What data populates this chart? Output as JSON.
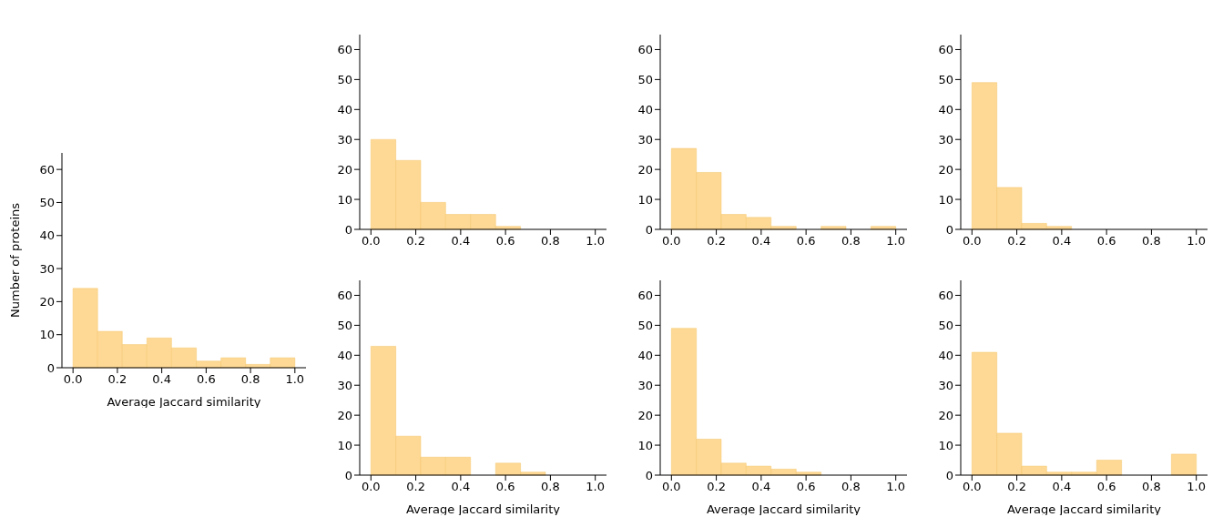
{
  "chart_data": [
    {
      "type": "histogram",
      "ylabel": "Number of proteins",
      "xlabel": "Average Jaccard similarity",
      "color": "#fdd995",
      "bins": [
        0,
        0.111,
        0.222,
        0.333,
        0.444,
        0.556,
        0.667,
        0.778,
        0.889,
        1
      ],
      "values": [
        24,
        11,
        7,
        9,
        6,
        2,
        3,
        1,
        3
      ],
      "xlim": [
        -0.05,
        1.05
      ],
      "xticks": [
        {
          "value": 0,
          "label": "0.0"
        },
        {
          "value": 0.2,
          "label": "0.2"
        },
        {
          "value": 0.4,
          "label": "0.4"
        },
        {
          "value": 0.6,
          "label": "0.6"
        },
        {
          "value": 0.8,
          "label": "0.8"
        },
        {
          "value": 1,
          "label": "1.0"
        }
      ],
      "ylim": [
        0,
        65
      ],
      "yticks": [
        0,
        10,
        20,
        30,
        40,
        50,
        60
      ]
    },
    {
      "type": "histogram",
      "color": "#fdd995",
      "bins": [
        0,
        0.111,
        0.222,
        0.333,
        0.444,
        0.556,
        0.667,
        0.778,
        0.889,
        1
      ],
      "values": [
        30,
        23,
        9,
        5,
        5,
        1,
        0,
        0,
        0
      ],
      "xlim": [
        -0.05,
        1.05
      ],
      "xticks": [
        {
          "value": 0,
          "label": "0.0"
        },
        {
          "value": 0.2,
          "label": "0.2"
        },
        {
          "value": 0.4,
          "label": "0.4"
        },
        {
          "value": 0.6,
          "label": "0.6"
        },
        {
          "value": 0.8,
          "label": "0.8"
        },
        {
          "value": 1,
          "label": "1.0"
        }
      ],
      "ylim": [
        0,
        65
      ],
      "yticks": [
        0,
        10,
        20,
        30,
        40,
        50,
        60
      ]
    },
    {
      "type": "histogram",
      "color": "#fdd995",
      "bins": [
        0,
        0.111,
        0.222,
        0.333,
        0.444,
        0.556,
        0.667,
        0.778,
        0.889,
        1
      ],
      "values": [
        27,
        19,
        5,
        4,
        1,
        0,
        1,
        0,
        1
      ],
      "xlim": [
        -0.05,
        1.05
      ],
      "xticks": [
        {
          "value": 0,
          "label": "0.0"
        },
        {
          "value": 0.2,
          "label": "0.2"
        },
        {
          "value": 0.4,
          "label": "0.4"
        },
        {
          "value": 0.6,
          "label": "0.6"
        },
        {
          "value": 0.8,
          "label": "0.8"
        },
        {
          "value": 1,
          "label": "1.0"
        }
      ],
      "ylim": [
        0,
        65
      ],
      "yticks": [
        0,
        10,
        20,
        30,
        40,
        50,
        60
      ]
    },
    {
      "type": "histogram",
      "color": "#fdd995",
      "bins": [
        0,
        0.111,
        0.222,
        0.333,
        0.444,
        0.556,
        0.667,
        0.778,
        0.889,
        1
      ],
      "values": [
        49,
        14,
        2,
        1,
        0,
        0,
        0,
        0,
        0
      ],
      "xlim": [
        -0.05,
        1.05
      ],
      "xticks": [
        {
          "value": 0,
          "label": "0.0"
        },
        {
          "value": 0.2,
          "label": "0.2"
        },
        {
          "value": 0.4,
          "label": "0.4"
        },
        {
          "value": 0.6,
          "label": "0.6"
        },
        {
          "value": 0.8,
          "label": "0.8"
        },
        {
          "value": 1,
          "label": "1.0"
        }
      ],
      "ylim": [
        0,
        65
      ],
      "yticks": [
        0,
        10,
        20,
        30,
        40,
        50,
        60
      ]
    },
    {
      "type": "histogram",
      "xlabel": "Average Jaccard similarity",
      "color": "#fdd995",
      "bins": [
        0,
        0.111,
        0.222,
        0.333,
        0.444,
        0.556,
        0.667,
        0.778,
        0.889,
        1
      ],
      "values": [
        43,
        13,
        6,
        6,
        0,
        4,
        1,
        0,
        0
      ],
      "xlim": [
        -0.05,
        1.05
      ],
      "xticks": [
        {
          "value": 0,
          "label": "0.0"
        },
        {
          "value": 0.2,
          "label": "0.2"
        },
        {
          "value": 0.4,
          "label": "0.4"
        },
        {
          "value": 0.6,
          "label": "0.6"
        },
        {
          "value": 0.8,
          "label": "0.8"
        },
        {
          "value": 1,
          "label": "1.0"
        }
      ],
      "ylim": [
        0,
        65
      ],
      "yticks": [
        0,
        10,
        20,
        30,
        40,
        50,
        60
      ]
    },
    {
      "type": "histogram",
      "xlabel": "Average Jaccard similarity",
      "color": "#fdd995",
      "bins": [
        0,
        0.111,
        0.222,
        0.333,
        0.444,
        0.556,
        0.667,
        0.778,
        0.889,
        1
      ],
      "values": [
        49,
        12,
        4,
        3,
        2,
        1,
        0,
        0,
        0
      ],
      "xlim": [
        -0.05,
        1.05
      ],
      "xticks": [
        {
          "value": 0,
          "label": "0.0"
        },
        {
          "value": 0.2,
          "label": "0.2"
        },
        {
          "value": 0.4,
          "label": "0.4"
        },
        {
          "value": 0.6,
          "label": "0.6"
        },
        {
          "value": 0.8,
          "label": "0.8"
        },
        {
          "value": 1,
          "label": "1.0"
        }
      ],
      "ylim": [
        0,
        65
      ],
      "yticks": [
        0,
        10,
        20,
        30,
        40,
        50,
        60
      ]
    },
    {
      "type": "histogram",
      "xlabel": "Average Jaccard similarity",
      "color": "#fdd995",
      "bins": [
        0,
        0.111,
        0.222,
        0.333,
        0.444,
        0.556,
        0.667,
        0.778,
        0.889,
        1
      ],
      "values": [
        41,
        14,
        3,
        1,
        1,
        5,
        0,
        0,
        7
      ],
      "xlim": [
        -0.05,
        1.05
      ],
      "xticks": [
        {
          "value": 0,
          "label": "0.0"
        },
        {
          "value": 0.2,
          "label": "0.2"
        },
        {
          "value": 0.4,
          "label": "0.4"
        },
        {
          "value": 0.6,
          "label": "0.6"
        },
        {
          "value": 0.8,
          "label": "0.8"
        },
        {
          "value": 1,
          "label": "1.0"
        }
      ],
      "ylim": [
        0,
        65
      ],
      "yticks": [
        0,
        10,
        20,
        30,
        40,
        50,
        60
      ]
    }
  ]
}
